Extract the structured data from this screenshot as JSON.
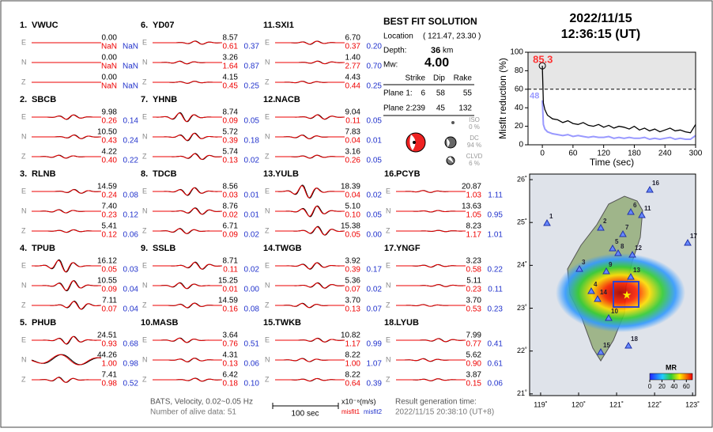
{
  "stations": [
    {
      "number": "1.",
      "code": "VWUC",
      "traces": [
        [
          "E",
          "0.00",
          "NaN",
          "NaN"
        ],
        [
          "N",
          "0.00",
          "NaN",
          "NaN"
        ],
        [
          "Z",
          "0.00",
          "NaN",
          "NaN"
        ]
      ]
    },
    {
      "number": "2.",
      "code": "SBCB",
      "traces": [
        [
          "E",
          "9.98",
          "0.26",
          "0.14"
        ],
        [
          "N",
          "10.50",
          "0.43",
          "0.24"
        ],
        [
          "Z",
          "4.22",
          "0.40",
          "0.22"
        ]
      ]
    },
    {
      "number": "3.",
      "code": "RLNB",
      "traces": [
        [
          "E",
          "14.59",
          "0.24",
          "0.08"
        ],
        [
          "N",
          "7.40",
          "0.23",
          "0.12"
        ],
        [
          "Z",
          "5.41",
          "0.12",
          "0.06"
        ]
      ]
    },
    {
      "number": "4.",
      "code": "TPUB",
      "traces": [
        [
          "E",
          "16.12",
          "0.05",
          "0.03"
        ],
        [
          "N",
          "10.55",
          "0.09",
          "0.04"
        ],
        [
          "Z",
          "7.11",
          "0.07",
          "0.04"
        ]
      ]
    },
    {
      "number": "5.",
      "code": "PHUB",
      "traces": [
        [
          "E",
          "24.51",
          "0.93",
          "0.68"
        ],
        [
          "N",
          "44.26",
          "1.00",
          "0.98"
        ],
        [
          "Z",
          "7.41",
          "0.98",
          "0.52"
        ]
      ]
    },
    {
      "number": "6.",
      "code": "YD07",
      "traces": [
        [
          "E",
          "8.57",
          "0.61",
          "0.37"
        ],
        [
          "N",
          "3.26",
          "1.64",
          "0.87"
        ],
        [
          "Z",
          "4.15",
          "0.45",
          "0.25"
        ]
      ]
    },
    {
      "number": "7.",
      "code": "YHNB",
      "traces": [
        [
          "E",
          "8.74",
          "0.09",
          "0.05"
        ],
        [
          "N",
          "5.72",
          "0.39",
          "0.18"
        ],
        [
          "Z",
          "5.74",
          "0.13",
          "0.02"
        ]
      ]
    },
    {
      "number": "8.",
      "code": "TDCB",
      "traces": [
        [
          "E",
          "8.56",
          "0.03",
          "0.01"
        ],
        [
          "N",
          "8.76",
          "0.02",
          "0.01"
        ],
        [
          "Z",
          "6.71",
          "0.09",
          "0.02"
        ]
      ]
    },
    {
      "number": "9.",
      "code": "SSLB",
      "traces": [
        [
          "E",
          "8.71",
          "0.11",
          "0.02"
        ],
        [
          "N",
          "15.25",
          "0.01",
          "0.00"
        ],
        [
          "Z",
          "14.59",
          "0.16",
          "0.08"
        ]
      ]
    },
    {
      "number": "10.",
      "code": "MASB",
      "traces": [
        [
          "E",
          "3.64",
          "0.76",
          "0.51"
        ],
        [
          "N",
          "4.31",
          "0.13",
          "0.06"
        ],
        [
          "Z",
          "6.42",
          "0.18",
          "0.10"
        ]
      ]
    },
    {
      "number": "11.",
      "code": "SXI1",
      "traces": [
        [
          "E",
          "6.70",
          "0.37",
          "0.20"
        ],
        [
          "N",
          "1.40",
          "2.77",
          "0.70"
        ],
        [
          "Z",
          "4.43",
          "0.44",
          "0.25"
        ]
      ]
    },
    {
      "number": "12.",
      "code": "NACB",
      "traces": [
        [
          "E",
          "9.04",
          "0.11",
          "0.05"
        ],
        [
          "N",
          "7.83",
          "0.04",
          "0.01"
        ],
        [
          "Z",
          "3.16",
          "0.26",
          "0.05"
        ]
      ]
    },
    {
      "number": "13.",
      "code": "YULB",
      "traces": [
        [
          "E",
          "18.39",
          "0.04",
          "0.02"
        ],
        [
          "N",
          "5.10",
          "0.10",
          "0.05"
        ],
        [
          "Z",
          "15.38",
          "0.05",
          "0.00"
        ]
      ]
    },
    {
      "number": "14.",
      "code": "TWGB",
      "traces": [
        [
          "E",
          "3.92",
          "0.39",
          "0.17"
        ],
        [
          "N",
          "5.36",
          "0.07",
          "0.02"
        ],
        [
          "Z",
          "3.70",
          "0.13",
          "0.07"
        ]
      ]
    },
    {
      "number": "15.",
      "code": "TWKB",
      "traces": [
        [
          "E",
          "10.82",
          "1.17",
          "0.99"
        ],
        [
          "N",
          "8.22",
          "1.00",
          "1.07"
        ],
        [
          "Z",
          "8.22",
          "0.64",
          "0.39"
        ]
      ]
    },
    {
      "number": "16.",
      "code": "PCYB",
      "traces": [
        [
          "E",
          "20.87",
          "1.03",
          "1.11"
        ],
        [
          "N",
          "13.63",
          "1.05",
          "0.95"
        ],
        [
          "Z",
          "8.23",
          "1.17",
          "1.01"
        ]
      ]
    },
    {
      "number": "17.",
      "code": "YNGF",
      "traces": [
        [
          "E",
          "3.23",
          "0.58",
          "0.22"
        ],
        [
          "N",
          "5.11",
          "0.23",
          "0.11"
        ],
        [
          "Z",
          "3.70",
          "0.53",
          "0.23"
        ]
      ]
    },
    {
      "number": "18.",
      "code": "LYUB",
      "traces": [
        [
          "E",
          "7.99",
          "0.77",
          "0.41"
        ],
        [
          "N",
          "5.62",
          "0.90",
          "0.61"
        ],
        [
          "Z",
          "3.87",
          "0.15",
          "0.06"
        ]
      ]
    }
  ],
  "legend": {
    "source": "BATS, Velocity, 0.02~0.05 Hz",
    "alive": "Number of alive data: 51",
    "scale": "100 sec",
    "units": "x10⁻⁸(m/s)",
    "misfit1": "misfit1",
    "misfit2": "misfit2",
    "generated_label": "Result generation time:",
    "generated_time": "2022/11/15 20:38:10 (UT+8)"
  },
  "solution": {
    "title": "BEST FIT SOLUTION",
    "location_label": "Location",
    "location": "( 121.47, 23.30 )",
    "depth_label": "Depth:",
    "depth": "36",
    "depth_unit": "km",
    "mw_label": "Mw:",
    "mw": "4.00",
    "columns": [
      "Strike",
      "Dip",
      "Rake"
    ],
    "planes": [
      {
        "label": "Plane 1:",
        "values": [
          "6",
          "58",
          "55"
        ]
      },
      {
        "label": "Plane 2:",
        "values": [
          "239",
          "45",
          "132"
        ]
      }
    ],
    "components": [
      {
        "name": "ISO",
        "percent": "0 %"
      },
      {
        "name": "DC",
        "percent": "94 %"
      },
      {
        "name": "CLVD",
        "percent": "6 %"
      }
    ]
  },
  "event": {
    "date": "2022/11/15",
    "time": "12:36:15  (UT)"
  },
  "chart_data": {
    "type": "line",
    "ylabel": "Misfit reduction (%)",
    "xlabel": "Time (sec)",
    "x": [
      0,
      2,
      5,
      10,
      15,
      20,
      30,
      40,
      50,
      60,
      70,
      80,
      90,
      100,
      110,
      120,
      130,
      140,
      150,
      160,
      170,
      180,
      190,
      200,
      210,
      220,
      230,
      240,
      250,
      260,
      270,
      280,
      290,
      300
    ],
    "series": [
      {
        "color": "#000000",
        "values": [
          85.3,
          45,
          38,
          32,
          30,
          28,
          27,
          24,
          26,
          23,
          22,
          24,
          21,
          20,
          22,
          19,
          21,
          18,
          20,
          19,
          17,
          20,
          16,
          18,
          15,
          17,
          14,
          16,
          18,
          15,
          16,
          14,
          13,
          22
        ]
      },
      {
        "color": "#9999ff",
        "values": [
          48,
          22,
          17,
          14,
          13,
          12,
          11,
          10,
          11,
          9,
          10,
          9,
          8,
          9,
          8,
          8,
          9,
          7,
          8,
          7,
          8,
          7,
          7,
          8,
          6,
          7,
          6,
          7,
          8,
          6,
          7,
          6,
          6,
          10
        ]
      }
    ],
    "annotations": [
      {
        "text": "85.3",
        "color": "#ff3333"
      },
      {
        "text": "48",
        "color": "#9999ff"
      }
    ],
    "reference_line": 60,
    "xlim": [
      -28,
      300
    ],
    "ylim": [
      0,
      100
    ],
    "xticks": [
      0,
      60,
      120,
      180,
      240,
      300
    ],
    "yticks": [
      0,
      20,
      40,
      60,
      80,
      100
    ]
  },
  "map": {
    "xlim": [
      118.71,
      123.08
    ],
    "ylim": [
      20.96,
      26.13
    ],
    "xticks": [
      {
        "value": 119,
        "label": "119˚"
      },
      {
        "value": 120,
        "label": "120˚"
      },
      {
        "value": 121,
        "label": "121˚"
      },
      {
        "value": 122,
        "label": "122˚"
      },
      {
        "value": 123,
        "label": "123˚"
      }
    ],
    "yticks": [
      {
        "value": 21,
        "label": "21˚"
      },
      {
        "value": 22,
        "label": "22˚"
      },
      {
        "value": 23,
        "label": "23˚"
      },
      {
        "value": 24,
        "label": "24˚"
      },
      {
        "value": 25,
        "label": "25˚"
      },
      {
        "value": 26,
        "label": "26˚"
      }
    ],
    "station_labels": [
      "1",
      "2",
      "3",
      "4",
      "5",
      "6",
      "7",
      "8",
      "9",
      "10",
      "11",
      "12",
      "13",
      "14",
      "15",
      "16",
      "17",
      "18"
    ],
    "colorbar": {
      "title": "MR",
      "lim": [
        0,
        70
      ],
      "ticks": [
        0,
        20,
        40,
        60
      ]
    }
  }
}
